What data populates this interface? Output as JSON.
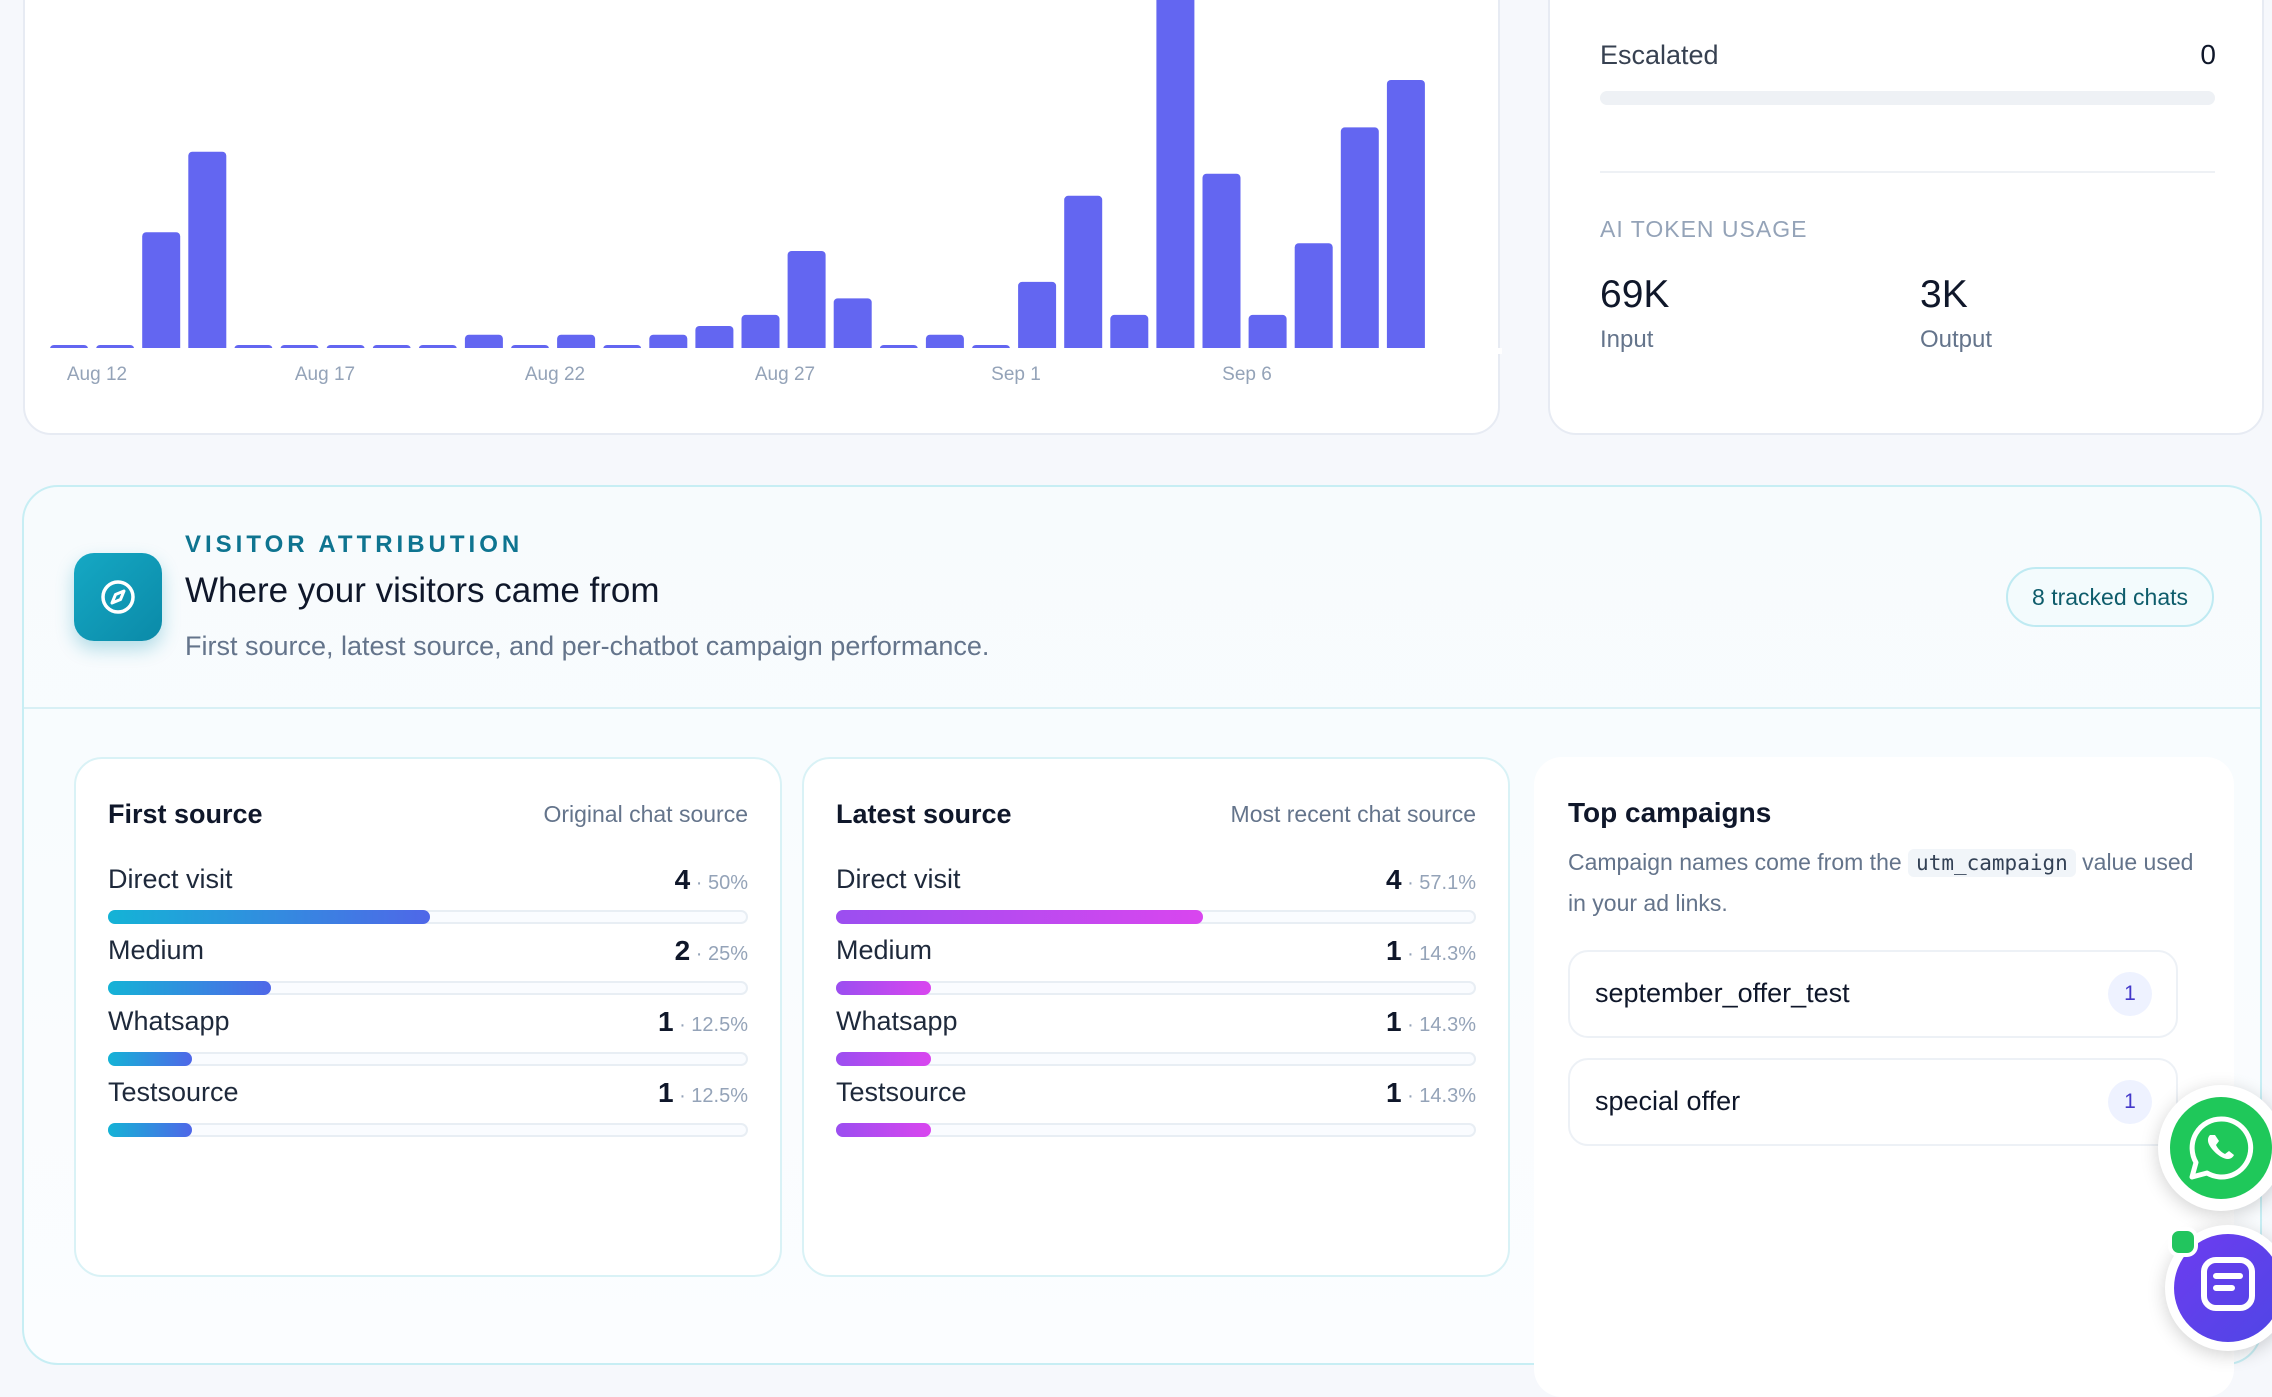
{
  "chart_data": {
    "type": "bar",
    "color": "#6366f1",
    "x_tick_labels": [
      "Aug 12",
      "Aug 17",
      "Aug 22",
      "Aug 27",
      "Sep 1",
      "Sep 6"
    ],
    "categories": [
      "Aug 12",
      "Aug 13",
      "Aug 14",
      "Aug 15",
      "Aug 16",
      "Aug 17",
      "Aug 18",
      "Aug 19",
      "Aug 20",
      "Aug 21",
      "Aug 22",
      "Aug 23",
      "Aug 24",
      "Aug 25",
      "Aug 26",
      "Aug 27",
      "Aug 28",
      "Aug 29",
      "Aug 30",
      "Aug 31",
      "Sep 1",
      "Sep 2",
      "Sep 3",
      "Sep 4",
      "Sep 5",
      "Sep 6",
      "Sep 7",
      "Sep 8",
      "Sep 9",
      "Sep 10"
    ],
    "values": [
      0,
      0,
      10.5,
      17.8,
      0,
      0,
      0,
      0,
      0,
      1.2,
      0,
      1.2,
      0,
      1.2,
      2,
      3,
      8.8,
      4.5,
      0,
      1.2,
      0,
      6,
      13.8,
      3,
      35,
      15.8,
      3,
      9.5,
      20,
      24.3
    ],
    "ylim": [
      0,
      35
    ]
  },
  "stats": {
    "escalated_label": "Escalated",
    "escalated_value": "0",
    "escalated_fraction": 0,
    "token_heading": "AI TOKEN USAGE",
    "input_value": "69K",
    "input_label": "Input",
    "output_value": "3K",
    "output_label": "Output"
  },
  "attribution": {
    "eyebrow": "VISITOR ATTRIBUTION",
    "title": "Where your visitors came from",
    "subtitle": "First source, latest source, and per-chatbot campaign performance.",
    "tracked_chats": "8 tracked chats",
    "icon": "compass-icon",
    "accent": "#0b8aa8"
  },
  "first_source": {
    "title": "First source",
    "subtitle": "Original chat source",
    "rows": [
      {
        "name": "Direct visit",
        "count": "4",
        "pct": " · 50%",
        "fraction": 0.5
      },
      {
        "name": "Medium",
        "count": "2",
        "pct": " · 25%",
        "fraction": 0.25
      },
      {
        "name": "Whatsapp",
        "count": "1",
        "pct": " · 12.5%",
        "fraction": 0.125
      },
      {
        "name": "Testsource",
        "count": "1",
        "pct": " · 12.5%",
        "fraction": 0.125
      }
    ]
  },
  "latest_source": {
    "title": "Latest source",
    "subtitle": "Most recent chat source",
    "rows": [
      {
        "name": "Direct visit",
        "count": "4",
        "pct": " · 57.1%",
        "fraction": 0.571
      },
      {
        "name": "Medium",
        "count": "1",
        "pct": " · 14.3%",
        "fraction": 0.143
      },
      {
        "name": "Whatsapp",
        "count": "1",
        "pct": " · 14.3%",
        "fraction": 0.143
      },
      {
        "name": "Testsource",
        "count": "1",
        "pct": " · 14.3%",
        "fraction": 0.143
      }
    ]
  },
  "campaigns": {
    "title": "Top campaigns",
    "desc_before": "Campaign names come from the ",
    "desc_code": "utm_campaign",
    "desc_after": " value used in your ad links.",
    "items": [
      {
        "name": "september_offer_test",
        "count": "1"
      },
      {
        "name": "special offer",
        "count": "1"
      }
    ]
  },
  "widgets": {
    "whatsapp_icon": "whatsapp-icon",
    "chat_icon": "chat-icon",
    "whatsapp_color": "#1fc85a",
    "chat_color": "#5b3fe8"
  }
}
